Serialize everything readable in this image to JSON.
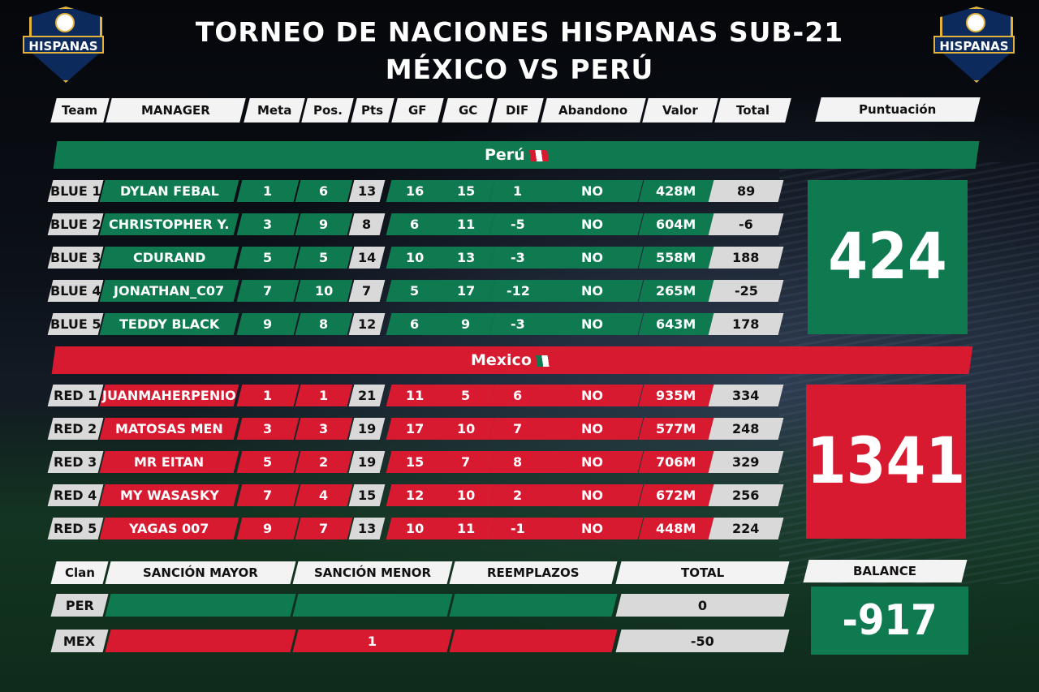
{
  "title_line1": "TORNEO DE NACIONES HISPANAS SUB-21",
  "title_line2": "MÉXICO VS PERÚ",
  "logo_text": "HISPANAS",
  "headers": [
    "Team",
    "MANAGER",
    "Meta",
    "Pos.",
    "Pts",
    "GF",
    "GC",
    "DIF",
    "Abandono",
    "Valor",
    "Total"
  ],
  "score_header": "Puntuación",
  "teams": [
    {
      "name": "Perú",
      "color": "#0f7a4f",
      "score": "424",
      "rows": [
        [
          "BLUE 1",
          "DYLAN FEBAL",
          "1",
          "6",
          "13",
          "16",
          "15",
          "1",
          "NO",
          "428M",
          "89"
        ],
        [
          "BLUE 2",
          "CHRISTOPHER Y.",
          "3",
          "9",
          "8",
          "6",
          "11",
          "-5",
          "NO",
          "604M",
          "-6"
        ],
        [
          "BLUE 3",
          "CDURAND",
          "5",
          "5",
          "14",
          "10",
          "13",
          "-3",
          "NO",
          "558M",
          "188"
        ],
        [
          "BLUE 4",
          "JONATHAN_C07",
          "7",
          "10",
          "7",
          "5",
          "17",
          "-12",
          "NO",
          "265M",
          "-25"
        ],
        [
          "BLUE 5",
          "TEDDY BLACK",
          "9",
          "8",
          "12",
          "6",
          "9",
          "-3",
          "NO",
          "643M",
          "178"
        ]
      ]
    },
    {
      "name": "Mexico",
      "color": "#d71a30",
      "score": "1341",
      "rows": [
        [
          "RED 1",
          "JUANMAHERPENIO",
          "1",
          "1",
          "21",
          "11",
          "5",
          "6",
          "NO",
          "935M",
          "334"
        ],
        [
          "RED 2",
          "MATOSAS MEN",
          "3",
          "3",
          "19",
          "17",
          "10",
          "7",
          "NO",
          "577M",
          "248"
        ],
        [
          "RED 3",
          "MR EITAN",
          "5",
          "2",
          "19",
          "15",
          "7",
          "8",
          "NO",
          "706M",
          "329"
        ],
        [
          "RED 4",
          "MY WASASKY",
          "7",
          "4",
          "15",
          "12",
          "10",
          "2",
          "NO",
          "672M",
          "256"
        ],
        [
          "RED 5",
          "YAGAS 007",
          "9",
          "7",
          "13",
          "10",
          "11",
          "-1",
          "NO",
          "448M",
          "224"
        ]
      ]
    }
  ],
  "sanctions": {
    "headers": [
      "Clan",
      "SANCIÓN MAYOR",
      "SANCIÓN MENOR",
      "REEMPLAZOS",
      "TOTAL"
    ],
    "balance_header": "BALANCE",
    "balance": "-917",
    "rows": [
      [
        "PER",
        "",
        "",
        "",
        "0"
      ],
      [
        "MEX",
        "",
        "1",
        "",
        "-50"
      ]
    ]
  }
}
